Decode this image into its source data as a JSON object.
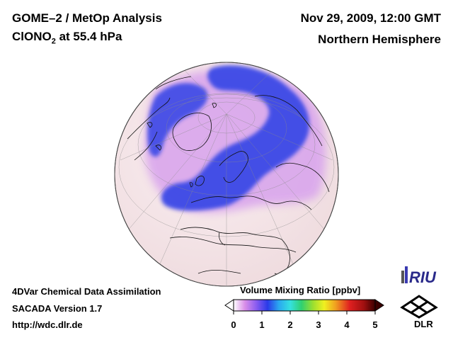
{
  "title": {
    "line1": "GOME–2 / MetOp Analysis",
    "species": "ClONO",
    "species_sub": "2",
    "level": " at 55.4 hPa"
  },
  "header_right": {
    "datetime": "Nov 29, 2009, 12:00 GMT",
    "region": "Northern Hemisphere"
  },
  "footer_left": {
    "line1": "4DVar Chemical Data Assimilation",
    "line2": "SACADA Version 1.7",
    "line3": "http://wdc.dlr.de"
  },
  "colorbar": {
    "title": "Volume Mixing Ratio [ppbv]",
    "ticks": [
      "0",
      "1",
      "2",
      "3",
      "4",
      "5"
    ],
    "range": [
      0,
      5
    ],
    "colors": [
      "#ffffff",
      "#d98ee8",
      "#8a5cf0",
      "#2a3ae8",
      "#2aa8f0",
      "#35e0e0",
      "#30d070",
      "#9adf30",
      "#f0f020",
      "#f0a020",
      "#e02020",
      "#a01010",
      "#3a0000"
    ]
  },
  "logos": {
    "riu": "RIU",
    "dlr": "DLR"
  },
  "map": {
    "background_color": "#f3e1e1",
    "low_color": "#f5dde6",
    "mid_color": "#d8a8e8",
    "high_color": "#3848e8"
  }
}
